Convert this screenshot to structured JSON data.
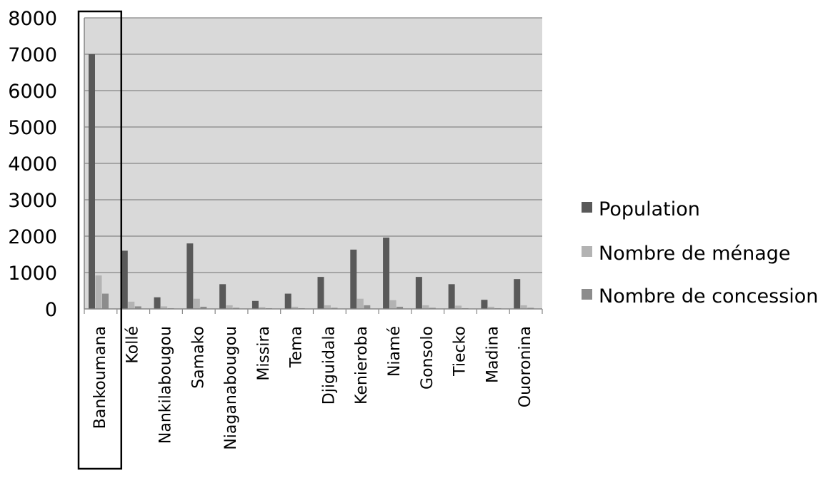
{
  "chart_data": {
    "type": "bar",
    "categories": [
      "Bankoumana",
      "Kollé",
      "Nankilabougou",
      "Samako",
      "Niaganabougou",
      "Missira",
      "Tema",
      "Djiguidala",
      "Kenieroba",
      "Niamé",
      "Gonsolo",
      "Tiecko",
      "Madina",
      "Ouoronina"
    ],
    "series": [
      {
        "name": "Population",
        "values": [
          7000,
          1600,
          320,
          1800,
          680,
          220,
          420,
          880,
          1630,
          1960,
          880,
          680,
          250,
          820
        ]
      },
      {
        "name": "Nombre de ménage",
        "values": [
          920,
          200,
          70,
          280,
          100,
          50,
          60,
          100,
          280,
          240,
          100,
          90,
          60,
          100
        ]
      },
      {
        "name": "Nombre de concession",
        "values": [
          420,
          70,
          20,
          60,
          30,
          20,
          20,
          30,
          100,
          60,
          30,
          20,
          20,
          30
        ]
      }
    ],
    "ylim": [
      0,
      8000
    ],
    "yticks": [
      0,
      1000,
      2000,
      3000,
      4000,
      5000,
      6000,
      7000,
      8000
    ],
    "grid": true,
    "legend_position": "right",
    "highlighted_category": "Bankoumana",
    "colors": {
      "plot_background": "#d9d9d9",
      "gridline": "#868686",
      "series": [
        "#595959",
        "#b3b3b3",
        "#8c8c8c"
      ],
      "highlight_box": "#000000"
    }
  }
}
